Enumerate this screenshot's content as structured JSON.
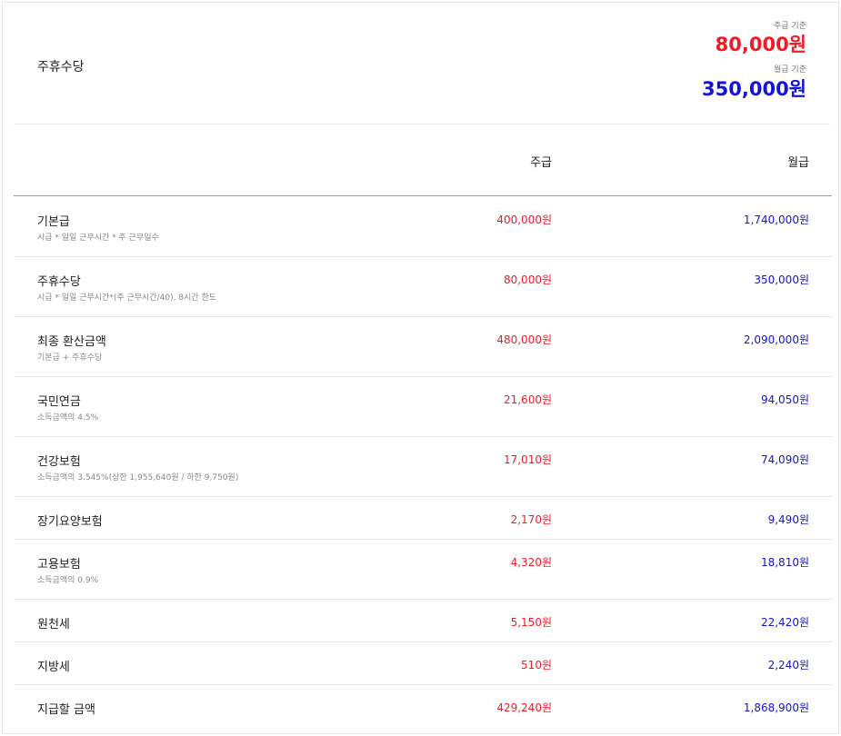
{
  "summary": {
    "title": "주휴수당",
    "weekly_caption": "주급 기준",
    "weekly_amount": "80,000원",
    "monthly_caption": "월급 기준",
    "monthly_amount": "350,000원"
  },
  "columns": {
    "weekly": "주급",
    "monthly": "월급"
  },
  "rows": [
    {
      "label": "기본급",
      "desc": "시급 * 일일 근무시간 * 주 근무일수",
      "weekly": "400,000원",
      "monthly": "1,740,000원"
    },
    {
      "label": "주휴수당",
      "desc": "시급 * 일일 근무시간*(주 근무시간/40), 8시간 한도",
      "weekly": "80,000원",
      "monthly": "350,000원"
    },
    {
      "label": "최종 환산금액",
      "desc": "기본급 + 주휴수당",
      "weekly": "480,000원",
      "monthly": "2,090,000원"
    },
    {
      "label": "국민연금",
      "desc": "소득금액의 4.5%",
      "weekly": "21,600원",
      "monthly": "94,050원"
    },
    {
      "label": "건강보험",
      "desc": "소득금액의 3.545%(상한 1,955,640원 / 하한 9,750원)",
      "weekly": "17,010원",
      "monthly": "74,090원"
    },
    {
      "label": "장기요양보험",
      "desc": "",
      "weekly": "2,170원",
      "monthly": "9,490원"
    },
    {
      "label": "고용보험",
      "desc": "소득금액의 0.9%",
      "weekly": "4,320원",
      "monthly": "18,810원"
    },
    {
      "label": "원천세",
      "desc": "",
      "weekly": "5,150원",
      "monthly": "22,420원"
    },
    {
      "label": "지방세",
      "desc": "",
      "weekly": "510원",
      "monthly": "2,240원"
    },
    {
      "label": "지급할 금액",
      "desc": "",
      "weekly": "429,240원",
      "monthly": "1,868,900원"
    }
  ],
  "colors": {
    "weekly": "#ee1c25",
    "monthly": "#1414d8"
  }
}
